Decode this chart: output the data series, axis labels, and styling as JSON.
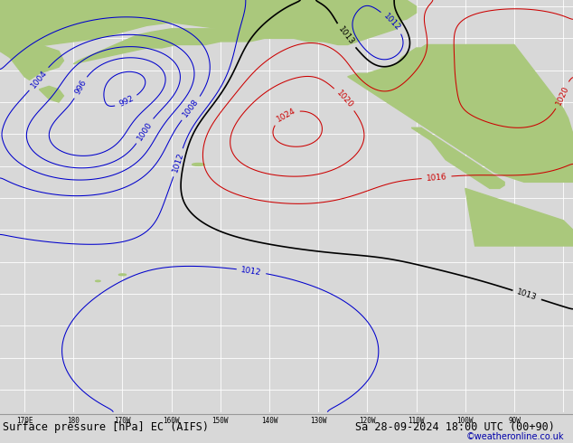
{
  "title": "Surface pressure [hPa] EC (AIFS)",
  "datetime_str": "Sa 28-09-2024 18:00 UTC (00+90)",
  "credit": "©weatheronline.co.uk",
  "bg_ocean": "#c8c8c8",
  "bg_land": "#aac87c",
  "grid_color": "#ffffff",
  "isobar_black_color": "#000000",
  "isobar_blue_color": "#0000cc",
  "isobar_red_color": "#cc0000",
  "label_fontsize": 6.5,
  "title_fontsize": 8.5,
  "credit_fontsize": 7,
  "bottom_bar_color": "#d8d8d8",
  "bottom_bar_height": 0.07,
  "lon_min": 165,
  "lon_max": 282,
  "lat_min": -57,
  "lat_max": 72
}
